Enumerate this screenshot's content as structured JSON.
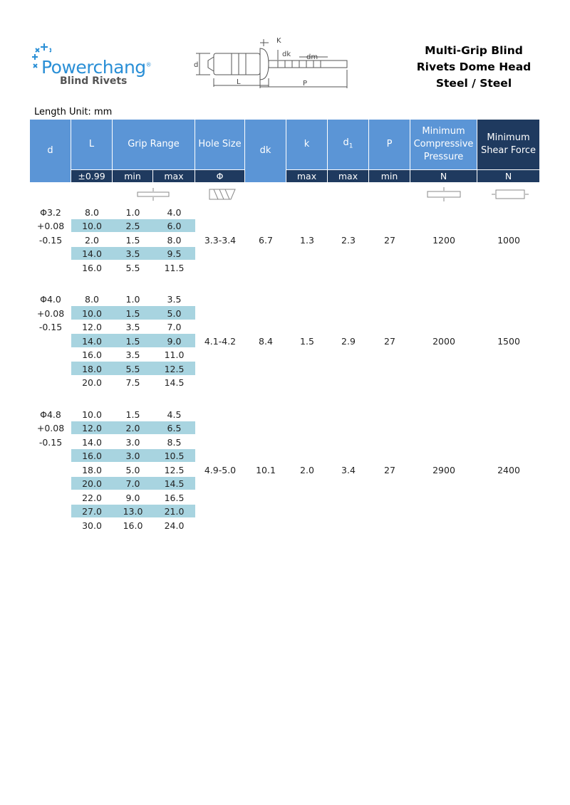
{
  "header": {
    "brand": "Powerchang",
    "brand_mark": "®",
    "subtitle": "Blind Rivets",
    "title_lines": [
      "Multi-Grip Blind",
      "Rivets Dome Head",
      "Steel / Steel"
    ]
  },
  "diagram": {
    "labels": {
      "k": "K",
      "dk": "dk",
      "dm": "dm",
      "d": "d",
      "L": "L",
      "P": "P"
    }
  },
  "unit_note": "Length Unit: mm",
  "table": {
    "columns": [
      {
        "text": "d"
      },
      {
        "text": "L"
      },
      {
        "text": "Grip Range"
      },
      {
        "text": "Hole Size"
      },
      {
        "text": "dk"
      },
      {
        "text": "k"
      },
      {
        "text": "d",
        "sub": "1"
      },
      {
        "text": "P"
      },
      {
        "text": "Minimum Compressive Pressure"
      },
      {
        "text": "Minimum Shear Force"
      }
    ],
    "subheader": [
      "±0.99",
      "min",
      "max",
      "Φ",
      "max",
      "max",
      "min",
      "N",
      "N"
    ],
    "groups": [
      {
        "d": [
          "Φ3.2",
          "+0.08",
          "-0.15"
        ],
        "rows": [
          [
            "8.0",
            "1.0",
            "4.0"
          ],
          [
            "10.0",
            "2.5",
            "6.0"
          ],
          [
            "2.0",
            "1.5",
            "8.0"
          ],
          [
            "14.0",
            "3.5",
            "9.5"
          ],
          [
            "16.0",
            "5.5",
            "11.5"
          ]
        ],
        "hole": "3.3-3.4",
        "dk": "6.7",
        "k": "1.3",
        "d1": "2.3",
        "P": "27",
        "compressive": "1200",
        "shear": "1000"
      },
      {
        "d": [
          "Φ4.0",
          "+0.08",
          "-0.15"
        ],
        "rows": [
          [
            "8.0",
            "1.0",
            "3.5"
          ],
          [
            "10.0",
            "1.5",
            "5.0"
          ],
          [
            "12.0",
            "3.5",
            "7.0"
          ],
          [
            "14.0",
            "1.5",
            "9.0"
          ],
          [
            "16.0",
            "3.5",
            "11.0"
          ],
          [
            "18.0",
            "5.5",
            "12.5"
          ],
          [
            "20.0",
            "7.5",
            "14.5"
          ]
        ],
        "hole": "4.1-4.2",
        "dk": "8.4",
        "k": "1.5",
        "d1": "2.9",
        "P": "27",
        "compressive": "2000",
        "shear": "1500"
      },
      {
        "d": [
          "Φ4.8",
          "+0.08",
          "-0.15"
        ],
        "rows": [
          [
            "10.0",
            "1.5",
            "4.5"
          ],
          [
            "12.0",
            "2.0",
            "6.5"
          ],
          [
            "14.0",
            "3.0",
            "8.5"
          ],
          [
            "16.0",
            "3.0",
            "10.5"
          ],
          [
            "18.0",
            "5.0",
            "12.5"
          ],
          [
            "20.0",
            "7.0",
            "14.5"
          ],
          [
            "22.0",
            "9.0",
            "16.5"
          ],
          [
            "27.0",
            "13.0",
            "21.0"
          ],
          [
            "30.0",
            "16.0",
            "24.0"
          ]
        ],
        "hole": "4.9-5.0",
        "dk": "10.1",
        "k": "2.0",
        "d1": "3.4",
        "P": "27",
        "compressive": "2900",
        "shear": "2400"
      }
    ]
  }
}
